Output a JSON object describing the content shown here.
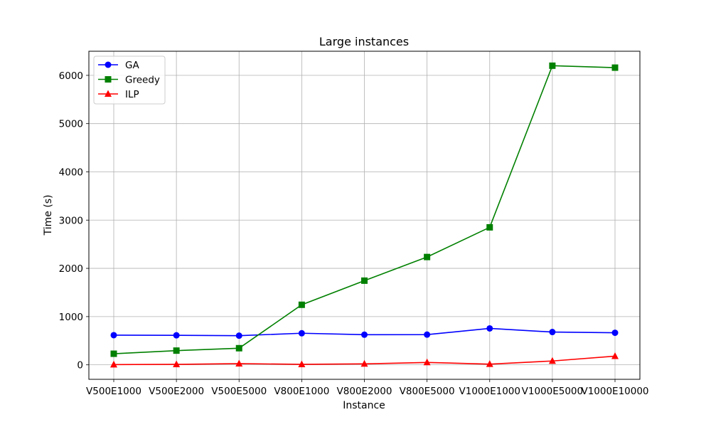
{
  "chart_data": {
    "type": "line",
    "title": "Large instances",
    "xlabel": "Instance",
    "ylabel": "Time (s)",
    "categories": [
      "V500E1000",
      "V500E2000",
      "V500E5000",
      "V800E1000",
      "V800E2000",
      "V800E5000",
      "V1000E1000",
      "V1000E5000",
      "V1000E10000"
    ],
    "ylim": [
      -300,
      6500
    ],
    "yticks": [
      0,
      1000,
      2000,
      3000,
      4000,
      5000,
      6000
    ],
    "grid": true,
    "legend_position": "top-left",
    "series": [
      {
        "name": "GA",
        "color": "#0000ff",
        "marker": "circle",
        "values": [
          615,
          612,
          605,
          655,
          625,
          627,
          755,
          680,
          665
        ]
      },
      {
        "name": "Greedy",
        "color": "#008000",
        "marker": "square",
        "values": [
          230,
          295,
          345,
          1245,
          1745,
          2235,
          2850,
          6200,
          6160
        ]
      },
      {
        "name": "ILP",
        "color": "#ff0000",
        "marker": "triangle",
        "values": [
          5,
          10,
          25,
          10,
          20,
          50,
          15,
          80,
          180
        ]
      }
    ]
  }
}
